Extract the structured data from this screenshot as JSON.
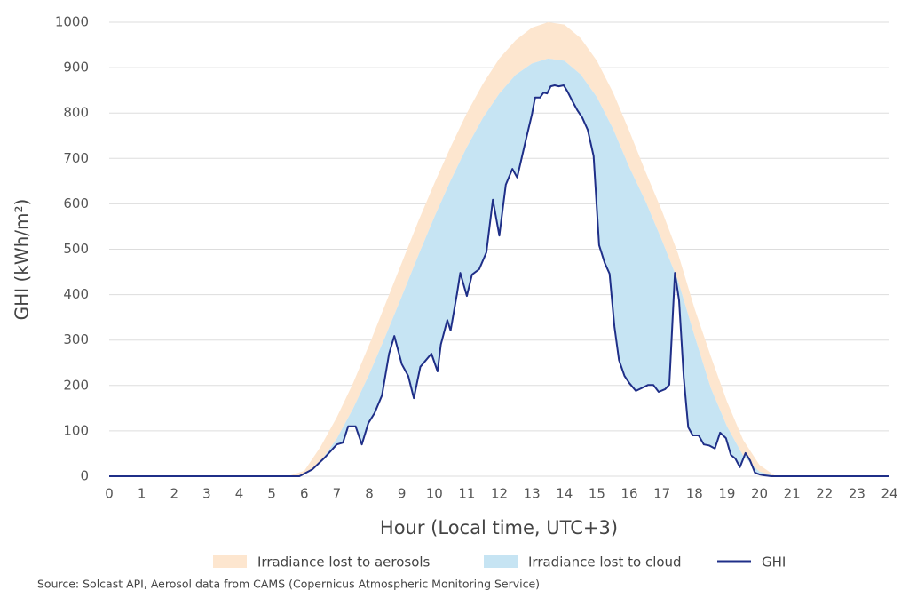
{
  "chart_data": {
    "type": "area",
    "xlabel": "Hour (Local time, UTC+3)",
    "ylabel": "GHI (kWh/m²)",
    "source": "Source: Solcast API, Aerosol data from CAMS (Copernicus Atmospheric Monitoring Service)",
    "xlim": [
      0,
      24
    ],
    "xticks": [
      0,
      1,
      2,
      3,
      4,
      5,
      6,
      7,
      8,
      9,
      10,
      11,
      12,
      13,
      14,
      15,
      16,
      17,
      18,
      19,
      20,
      21,
      22,
      23,
      24
    ],
    "ylim": [
      0,
      1000
    ],
    "yticks": [
      0,
      100,
      200,
      300,
      400,
      500,
      600,
      700,
      800,
      900,
      1000
    ],
    "grid": true,
    "legend": "bottom",
    "series": [
      {
        "name": "Irradiance lost to aerosols",
        "color": "#fde6cf",
        "x": [
          5.5,
          6,
          6.5,
          7,
          7.5,
          8,
          8.5,
          9,
          9.5,
          10,
          10.5,
          11,
          11.5,
          12,
          12.5,
          13,
          13.5,
          14,
          14.5,
          15,
          15.5,
          16,
          16.5,
          17,
          17.5,
          18,
          18.5,
          19,
          19.5,
          20,
          20.5
        ],
        "values": [
          0,
          12,
          65,
          130,
          205,
          290,
          380,
          470,
          560,
          645,
          725,
          800,
          865,
          920,
          960,
          988,
          1000,
          995,
          965,
          915,
          845,
          760,
          670,
          585,
          490,
          370,
          265,
          165,
          80,
          25,
          0
        ]
      },
      {
        "name": "Irradiance lost to cloud",
        "color": "#c6e4f3",
        "x": [
          5.5,
          6,
          6.5,
          7,
          7.5,
          8,
          8.5,
          9,
          9.5,
          10,
          10.5,
          11,
          11.5,
          12,
          12.5,
          13,
          13.5,
          14,
          14.5,
          15,
          15.5,
          16,
          16.5,
          17,
          17.5,
          18,
          18.5,
          19,
          19.5,
          20,
          20.5
        ],
        "values": [
          0,
          3,
          32,
          83,
          149,
          225,
          309,
          396,
          485,
          571,
          651,
          725,
          790,
          843,
          884,
          909,
          920,
          915,
          885,
          835,
          765,
          680,
          605,
          520,
          430,
          310,
          195,
          110,
          45,
          10,
          0
        ]
      },
      {
        "name": "GHI",
        "color": "#1f2f88",
        "x": [
          0,
          5.85,
          6.25,
          6.63,
          7.0,
          7.19,
          7.35,
          7.58,
          7.77,
          7.97,
          8.16,
          8.39,
          8.61,
          8.77,
          9.0,
          9.2,
          9.37,
          9.57,
          9.91,
          10.1,
          10.2,
          10.4,
          10.5,
          10.7,
          10.8,
          11.0,
          11.16,
          11.38,
          11.6,
          11.8,
          12.0,
          12.2,
          12.4,
          12.55,
          12.8,
          13.0,
          13.1,
          13.25,
          13.36,
          13.47,
          13.58,
          13.7,
          13.83,
          13.98,
          14.1,
          14.25,
          14.4,
          14.55,
          14.72,
          14.9,
          15.07,
          15.24,
          15.39,
          15.54,
          15.68,
          15.85,
          16.0,
          16.2,
          16.37,
          16.57,
          16.74,
          16.9,
          17.1,
          17.23,
          17.4,
          17.53,
          17.67,
          17.81,
          17.95,
          18.13,
          18.29,
          18.45,
          18.63,
          18.79,
          18.97,
          19.12,
          19.26,
          19.4,
          19.57,
          19.71,
          19.86,
          20.0,
          20.15,
          20.36,
          24
        ],
        "values": [
          0,
          0,
          15,
          41,
          70,
          74,
          110,
          110,
          70,
          117,
          139,
          178,
          270,
          309,
          247,
          221,
          172,
          241,
          270,
          231,
          290,
          344,
          321,
          403,
          448,
          397,
          444,
          456,
          493,
          609,
          530,
          642,
          677,
          658,
          736,
          796,
          834,
          834,
          845,
          843,
          859,
          861,
          859,
          861,
          847,
          826,
          806,
          790,
          763,
          705,
          509,
          470,
          446,
          329,
          256,
          221,
          205,
          188,
          194,
          201,
          201,
          186,
          192,
          202,
          448,
          387,
          219,
          108,
          90,
          90,
          70,
          68,
          61,
          96,
          84,
          47,
          39,
          20,
          51,
          35,
          8,
          4,
          2,
          0,
          0
        ]
      }
    ]
  }
}
